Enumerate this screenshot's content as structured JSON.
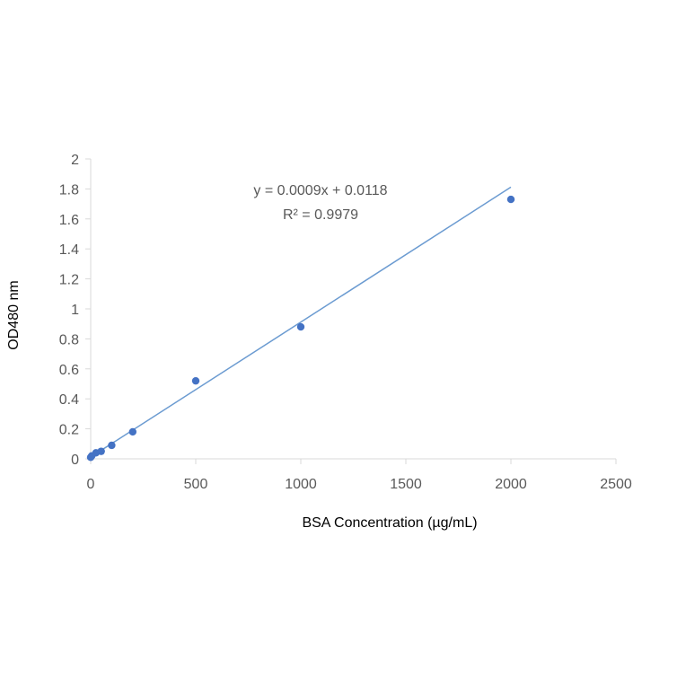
{
  "chart_data": {
    "type": "scatter",
    "title": "",
    "xlabel": "BSA Concentration (µg/mL)",
    "ylabel": "OD480 nm",
    "xlim": [
      0,
      2500
    ],
    "ylim": [
      0,
      2
    ],
    "x_ticks": [
      0,
      500,
      1000,
      1500,
      2000,
      2500
    ],
    "y_ticks": [
      0,
      0.2,
      0.4,
      0.6,
      0.8,
      1,
      1.2,
      1.4,
      1.6,
      1.8,
      2
    ],
    "x_tick_labels": [
      "0",
      "500",
      "1000",
      "1500",
      "2000",
      "2500"
    ],
    "y_tick_labels": [
      "0",
      "0.2",
      "0.4",
      "0.6",
      "0.8",
      "1",
      "1.2",
      "1.4",
      "1.6",
      "1.8",
      "2"
    ],
    "grid": false,
    "legend": "none",
    "series": [
      {
        "x": [
          0,
          5,
          25,
          50,
          100,
          200,
          500,
          1000,
          2000
        ],
        "y": [
          0.01,
          0.02,
          0.04,
          0.05,
          0.09,
          0.18,
          0.52,
          0.88,
          1.73
        ]
      }
    ],
    "trendline": {
      "slope": 0.0009,
      "intercept": 0.0118,
      "x_range": [
        0,
        2000
      ],
      "equation_label": "y = 0.0009x + 0.0118",
      "r2_label": "R² = 0.9979"
    },
    "colors": {
      "marker": "#4472c4",
      "trendline": "#6b9bd1",
      "axis": "#d9d9d9",
      "tick_text": "#595959"
    }
  }
}
